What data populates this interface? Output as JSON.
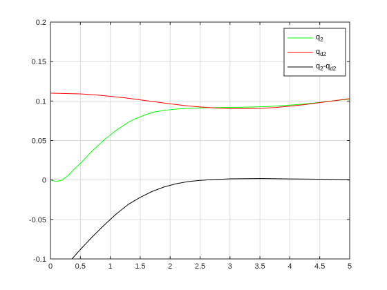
{
  "chart_data": {
    "type": "line",
    "title": "",
    "xlabel": "",
    "ylabel": "",
    "xlim": [
      0,
      5
    ],
    "ylim": [
      -0.1,
      0.2
    ],
    "xticks": [
      0,
      0.5,
      1,
      1.5,
      2,
      2.5,
      3,
      3.5,
      4,
      4.5,
      5
    ],
    "xtick_labels": [
      "0",
      "0.5",
      "1",
      "1.5",
      "2",
      "2.5",
      "3",
      "3.5",
      "4",
      "4.5",
      "5"
    ],
    "yticks": [
      -0.1,
      -0.05,
      0,
      0.05,
      0.1,
      0.15,
      0.2
    ],
    "ytick_labels": [
      "-0.1",
      "-0.05",
      "0",
      "0.05",
      "0.1",
      "0.15",
      "0.2"
    ],
    "grid": true,
    "legend_position": "top-right",
    "series": [
      {
        "name": "q_2",
        "legend": {
          "base": "q",
          "sub": "2",
          "tail": "",
          "tail_sub": ""
        },
        "color": "#00ff00",
        "x": [
          0,
          0.1,
          0.2,
          0.3,
          0.4,
          0.5,
          0.6,
          0.7,
          0.8,
          0.9,
          1.0,
          1.1,
          1.2,
          1.3,
          1.4,
          1.5,
          1.6,
          1.7,
          1.8,
          2.0,
          2.2,
          2.4,
          2.6,
          2.8,
          3.0,
          3.2,
          3.4,
          3.6,
          3.8,
          4.0,
          4.2,
          4.4,
          4.6,
          4.8,
          5.0
        ],
        "y": [
          0.0,
          -0.002,
          0.0,
          0.006,
          0.014,
          0.021,
          0.029,
          0.037,
          0.044,
          0.051,
          0.057,
          0.063,
          0.068,
          0.073,
          0.077,
          0.08,
          0.083,
          0.0855,
          0.087,
          0.089,
          0.0905,
          0.091,
          0.0915,
          0.0918,
          0.092,
          0.0922,
          0.0925,
          0.093,
          0.0938,
          0.0948,
          0.096,
          0.0975,
          0.0992,
          0.1008,
          0.1025
        ]
      },
      {
        "name": "q_d2",
        "legend": {
          "base": "q",
          "sub": "d2",
          "tail": "",
          "tail_sub": ""
        },
        "color": "#ff0000",
        "x": [
          0,
          0.25,
          0.5,
          0.75,
          1.0,
          1.25,
          1.5,
          1.75,
          2.0,
          2.25,
          2.5,
          2.75,
          3.0,
          3.25,
          3.5,
          3.75,
          4.0,
          4.25,
          4.5,
          4.75,
          5.0
        ],
        "y": [
          0.11,
          0.1095,
          0.109,
          0.1078,
          0.106,
          0.104,
          0.1015,
          0.099,
          0.0965,
          0.0942,
          0.0925,
          0.0912,
          0.0905,
          0.0904,
          0.0907,
          0.0918,
          0.0935,
          0.0955,
          0.098,
          0.1005,
          0.103
        ]
      },
      {
        "name": "q_2-q_d2",
        "legend": {
          "base": "q",
          "sub": "2",
          "tail": "-q",
          "tail_sub": "d2"
        },
        "color": "#000000",
        "x": [
          0.36,
          0.5,
          0.7,
          0.9,
          1.1,
          1.3,
          1.5,
          1.7,
          1.9,
          2.1,
          2.3,
          2.5,
          2.7,
          3.0,
          3.5,
          4.0,
          4.5,
          5.0
        ],
        "y": [
          -0.1,
          -0.088,
          -0.072,
          -0.057,
          -0.043,
          -0.031,
          -0.022,
          -0.0145,
          -0.0088,
          -0.0048,
          -0.002,
          -0.0005,
          0.0005,
          0.0015,
          0.0018,
          0.0014,
          0.001,
          0.0005
        ]
      }
    ]
  }
}
